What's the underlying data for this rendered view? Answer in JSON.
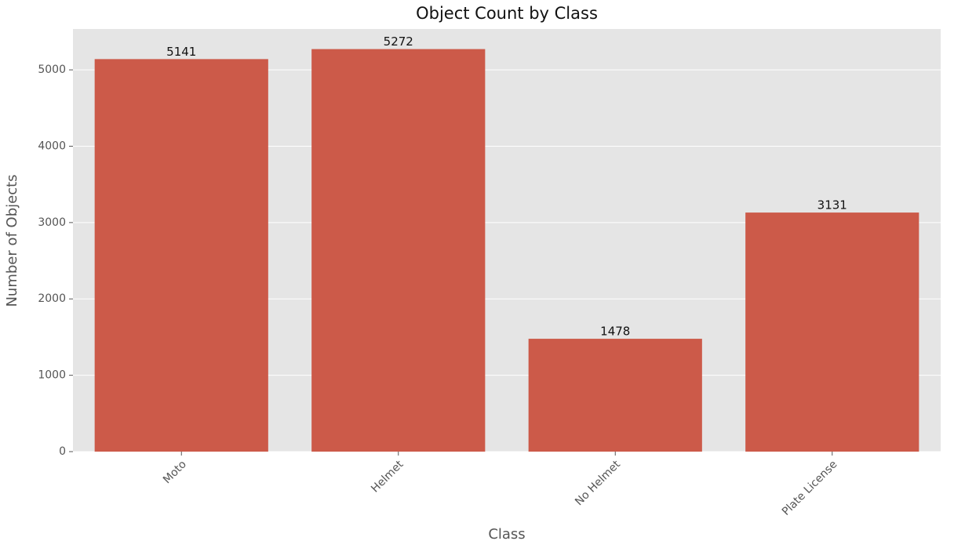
{
  "chart_data": {
    "type": "bar",
    "title": "Object Count by Class",
    "x_label": "Class",
    "y_label": "Number of Objects",
    "categories": [
      "Moto",
      "Helmet",
      "No Helmet",
      "Plate License"
    ],
    "values": [
      5141,
      5272,
      1478,
      3131
    ],
    "color": "#cc5a49",
    "ylim": [
      0,
      5535
    ],
    "yticks": [
      0,
      1000,
      2000,
      3000,
      4000,
      5000
    ],
    "grid": true
  }
}
